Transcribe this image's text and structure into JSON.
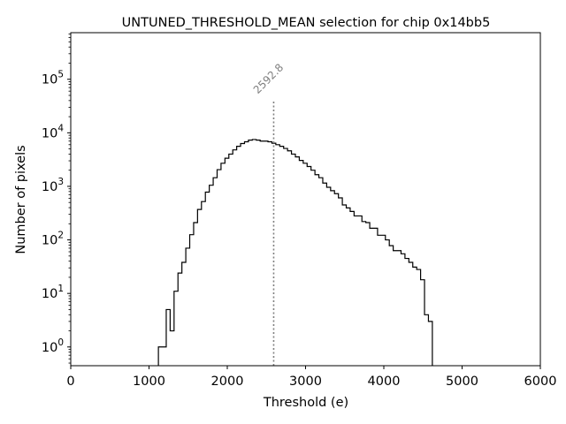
{
  "chart_data": {
    "type": "histogram",
    "title": "UNTUNED_THRESHOLD_MEAN selection for chip 0x14bb5",
    "xlabel": "Threshold (e)",
    "ylabel": "Number of pixels",
    "xlim": [
      0,
      6000
    ],
    "ylim_log10": [
      -0.35,
      5.87
    ],
    "yscale": "log",
    "x_ticks": [
      {
        "value": 0,
        "label": "0"
      },
      {
        "value": 1000,
        "label": "1000"
      },
      {
        "value": 2000,
        "label": "2000"
      },
      {
        "value": 3000,
        "label": "3000"
      },
      {
        "value": 4000,
        "label": "4000"
      },
      {
        "value": 5000,
        "label": "5000"
      },
      {
        "value": 6000,
        "label": "6000"
      }
    ],
    "y_ticks": [
      {
        "exp": 0,
        "base": "10",
        "sup": "0"
      },
      {
        "exp": 1,
        "base": "10",
        "sup": "1"
      },
      {
        "exp": 2,
        "base": "10",
        "sup": "2"
      },
      {
        "exp": 3,
        "base": "10",
        "sup": "3"
      },
      {
        "exp": 4,
        "base": "10",
        "sup": "4"
      },
      {
        "exp": 5,
        "base": "10",
        "sup": "5"
      }
    ],
    "bins": {
      "edges_start": 1120,
      "bin_width": 50,
      "counts": [
        1,
        1,
        5,
        2,
        11,
        24,
        38,
        70,
        125,
        210,
        370,
        520,
        780,
        1050,
        1450,
        2050,
        2700,
        3350,
        4000,
        4800,
        5600,
        6300,
        6800,
        7300,
        7500,
        7300,
        7000,
        7000,
        6800,
        6400,
        6000,
        5600,
        5100,
        4600,
        4000,
        3550,
        3050,
        2700,
        2350,
        2000,
        1650,
        1450,
        1150,
        960,
        830,
        730,
        610,
        450,
        395,
        340,
        280,
        280,
        220,
        210,
        165,
        165,
        122,
        122,
        100,
        78,
        63,
        63,
        55,
        45,
        38,
        31,
        28,
        18,
        4,
        3
      ]
    },
    "mean_line": {
      "value": 2592.8,
      "label": "2592.8",
      "top_log10": 4.62,
      "color": "#808080"
    },
    "colors": {
      "line": "#000000",
      "annotation": "#808080"
    }
  }
}
